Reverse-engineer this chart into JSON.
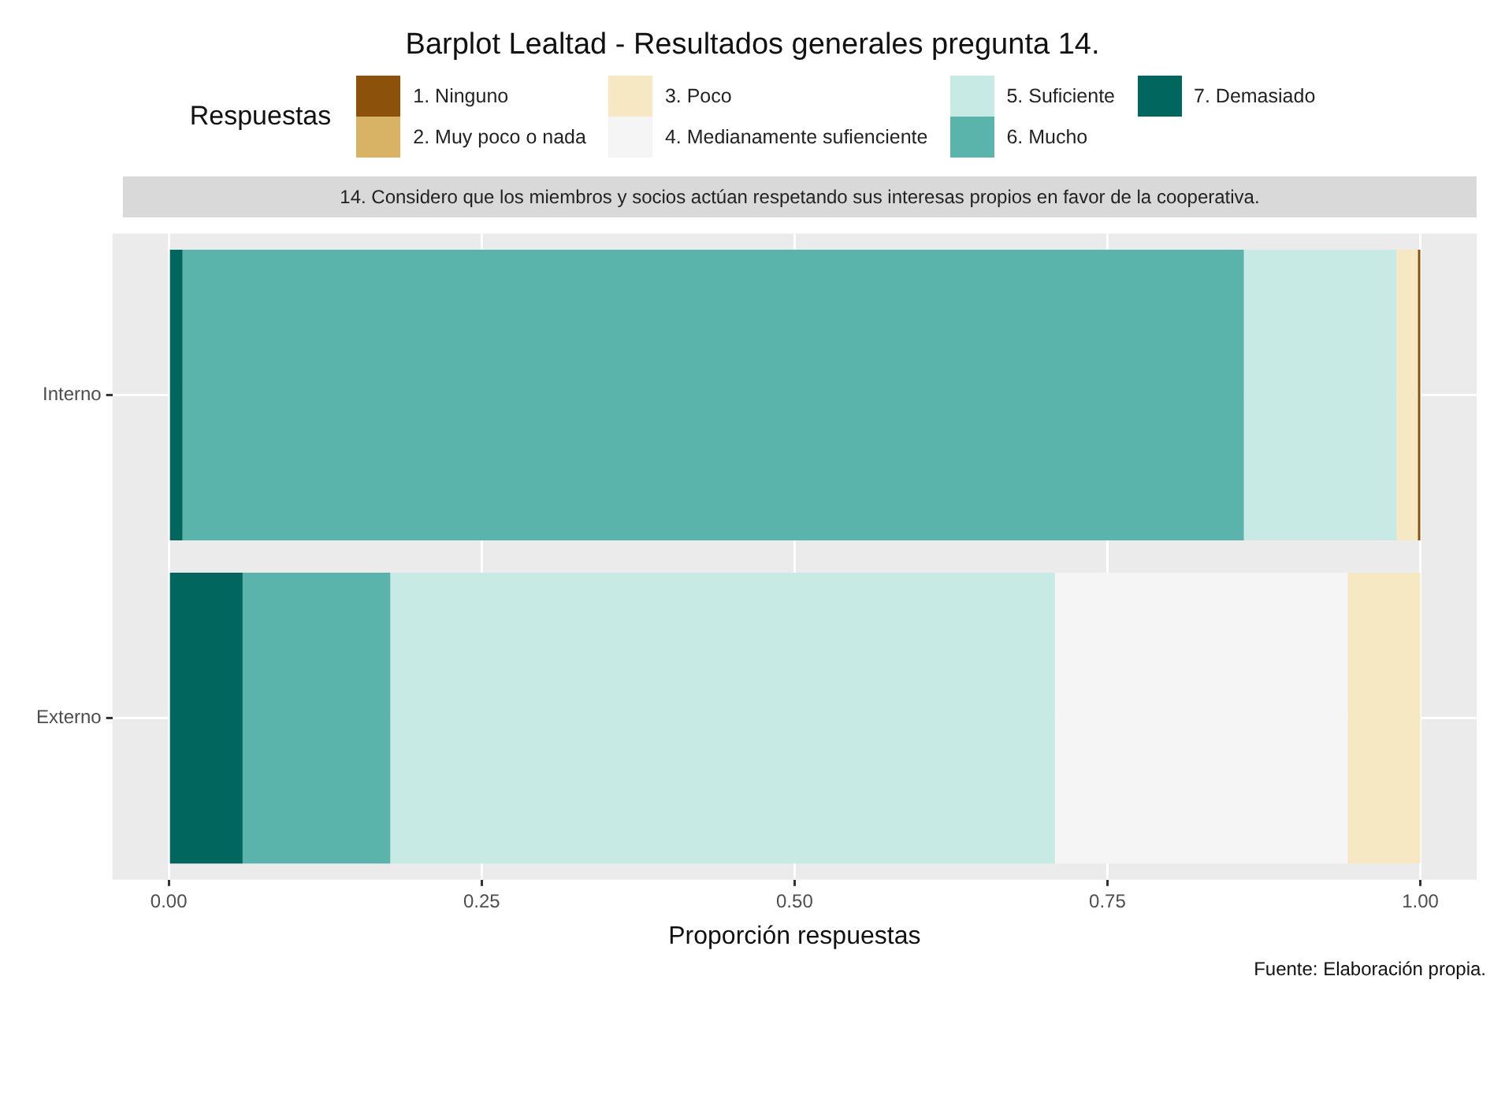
{
  "chart_data": {
    "type": "bar",
    "orientation": "horizontal",
    "stacked": true,
    "title": "Barplot Lealtad - Resultados generales pregunta 14.",
    "subtitle": "14. Considero que los miembros y socios actúan respetando sus interesas propios en favor de la cooperativa.",
    "xlabel": "Proporción respuestas",
    "legend_title": "Respuestas",
    "legend": "top",
    "grid": true,
    "categories": [
      "Interno",
      "Externo"
    ],
    "series": [
      {
        "name": "7. Demasiado",
        "color": "#01665e",
        "values": [
          0.011,
          0.059
        ]
      },
      {
        "name": "6. Mucho",
        "color": "#5ab4ac",
        "values": [
          0.848,
          0.118
        ]
      },
      {
        "name": "5. Suficiente",
        "color": "#c7eae5",
        "values": [
          0.122,
          0.531
        ]
      },
      {
        "name": "4. Medianamente sufienciente",
        "color": "#f5f5f5",
        "values": [
          0,
          0.234
        ]
      },
      {
        "name": "3. Poco",
        "color": "#f6e8c3",
        "values": [
          0.017,
          0.058
        ]
      },
      {
        "name": "2. Muy poco o nada",
        "color": "#d8b365",
        "values": [
          0,
          0
        ]
      },
      {
        "name": "1. Ninguno",
        "color": "#8c510a",
        "values": [
          0.002,
          0
        ]
      }
    ],
    "xlim": [
      -0.045,
      1.045
    ],
    "xticks": [
      {
        "value": 0,
        "label": "0.00"
      },
      {
        "value": 0.25,
        "label": "0.25"
      },
      {
        "value": 0.5,
        "label": "0.50"
      },
      {
        "value": 0.75,
        "label": "0.75"
      },
      {
        "value": 1,
        "label": "1.00"
      }
    ],
    "annotations": [
      "Fuente: Elaboración propia."
    ]
  }
}
